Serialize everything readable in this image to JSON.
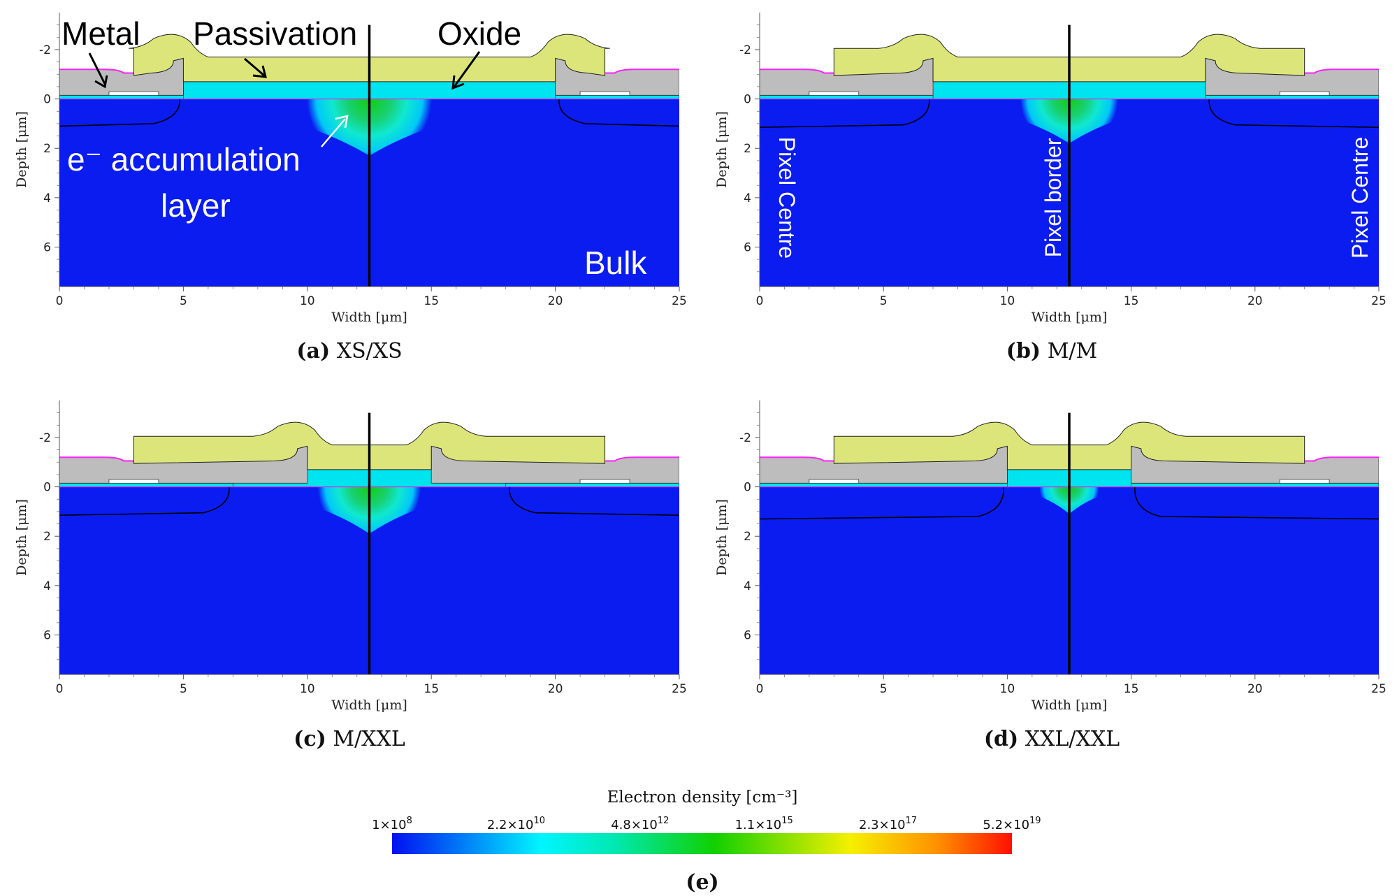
{
  "panels": [
    {
      "id": "a",
      "caption_tag": "(a)",
      "caption_text": "XS/XS",
      "window_left": 5,
      "window_right": 20,
      "metal_gap": [
        5,
        20
      ],
      "wedge_depth": 2.3,
      "boundary_y": 1.1
    },
    {
      "id": "b",
      "caption_tag": "(b)",
      "caption_text": "M/M",
      "window_left": 7,
      "window_right": 18,
      "metal_gap": [
        7,
        18
      ],
      "wedge_depth": 1.8,
      "boundary_y": 1.15
    },
    {
      "id": "c",
      "caption_tag": "(c)",
      "caption_text": "M/XXL",
      "window_left": 7,
      "window_right": 18,
      "metal_gap": [
        10,
        15
      ],
      "wedge_depth": 1.9,
      "boundary_y": 1.15
    },
    {
      "id": "d",
      "caption_tag": "(d)",
      "caption_text": "XXL/XXL",
      "window_left": 10,
      "window_right": 15,
      "metal_gap": [
        10,
        15
      ],
      "wedge_depth": 1.1,
      "boundary_y": 1.3
    }
  ],
  "axes": {
    "x_label": "Width [μm]",
    "y_label": "Depth [μm]",
    "x_ticks": [
      "0",
      "5",
      "10",
      "15",
      "20",
      "25"
    ],
    "y_ticks": [
      "-2",
      "0",
      "2",
      "4",
      "6"
    ],
    "x_range": [
      0,
      25
    ],
    "y_range": [
      -3.5,
      7.6
    ]
  },
  "annotations_a": {
    "metal": "Metal",
    "passivation": "Passivation",
    "oxide": "Oxide",
    "accum_line1": "e⁻ accumulation",
    "accum_line2": "layer",
    "bulk": "Bulk"
  },
  "annotations_b": {
    "pixel_centre_left": "Pixel Centre",
    "pixel_border": "Pixel border",
    "pixel_centre_right": "Pixel Centre"
  },
  "colorbar": {
    "title": "Electron density [cm⁻³]",
    "ticks": [
      {
        "base": "1×10",
        "exp": "8"
      },
      {
        "base": "2.2×10",
        "exp": "10"
      },
      {
        "base": "4.8×10",
        "exp": "12"
      },
      {
        "base": "1.1×10",
        "exp": "15"
      },
      {
        "base": "2.3×10",
        "exp": "17"
      },
      {
        "base": "5.2×10",
        "exp": "19"
      }
    ],
    "caption": "(e)"
  },
  "colors": {
    "bulk": "#0a1cf0",
    "oxide": "#00e4f0",
    "metal": "#bdbdbd",
    "passivation": "#dce57a",
    "magenta": "#ff20ff",
    "green": "#1ad51a"
  }
}
